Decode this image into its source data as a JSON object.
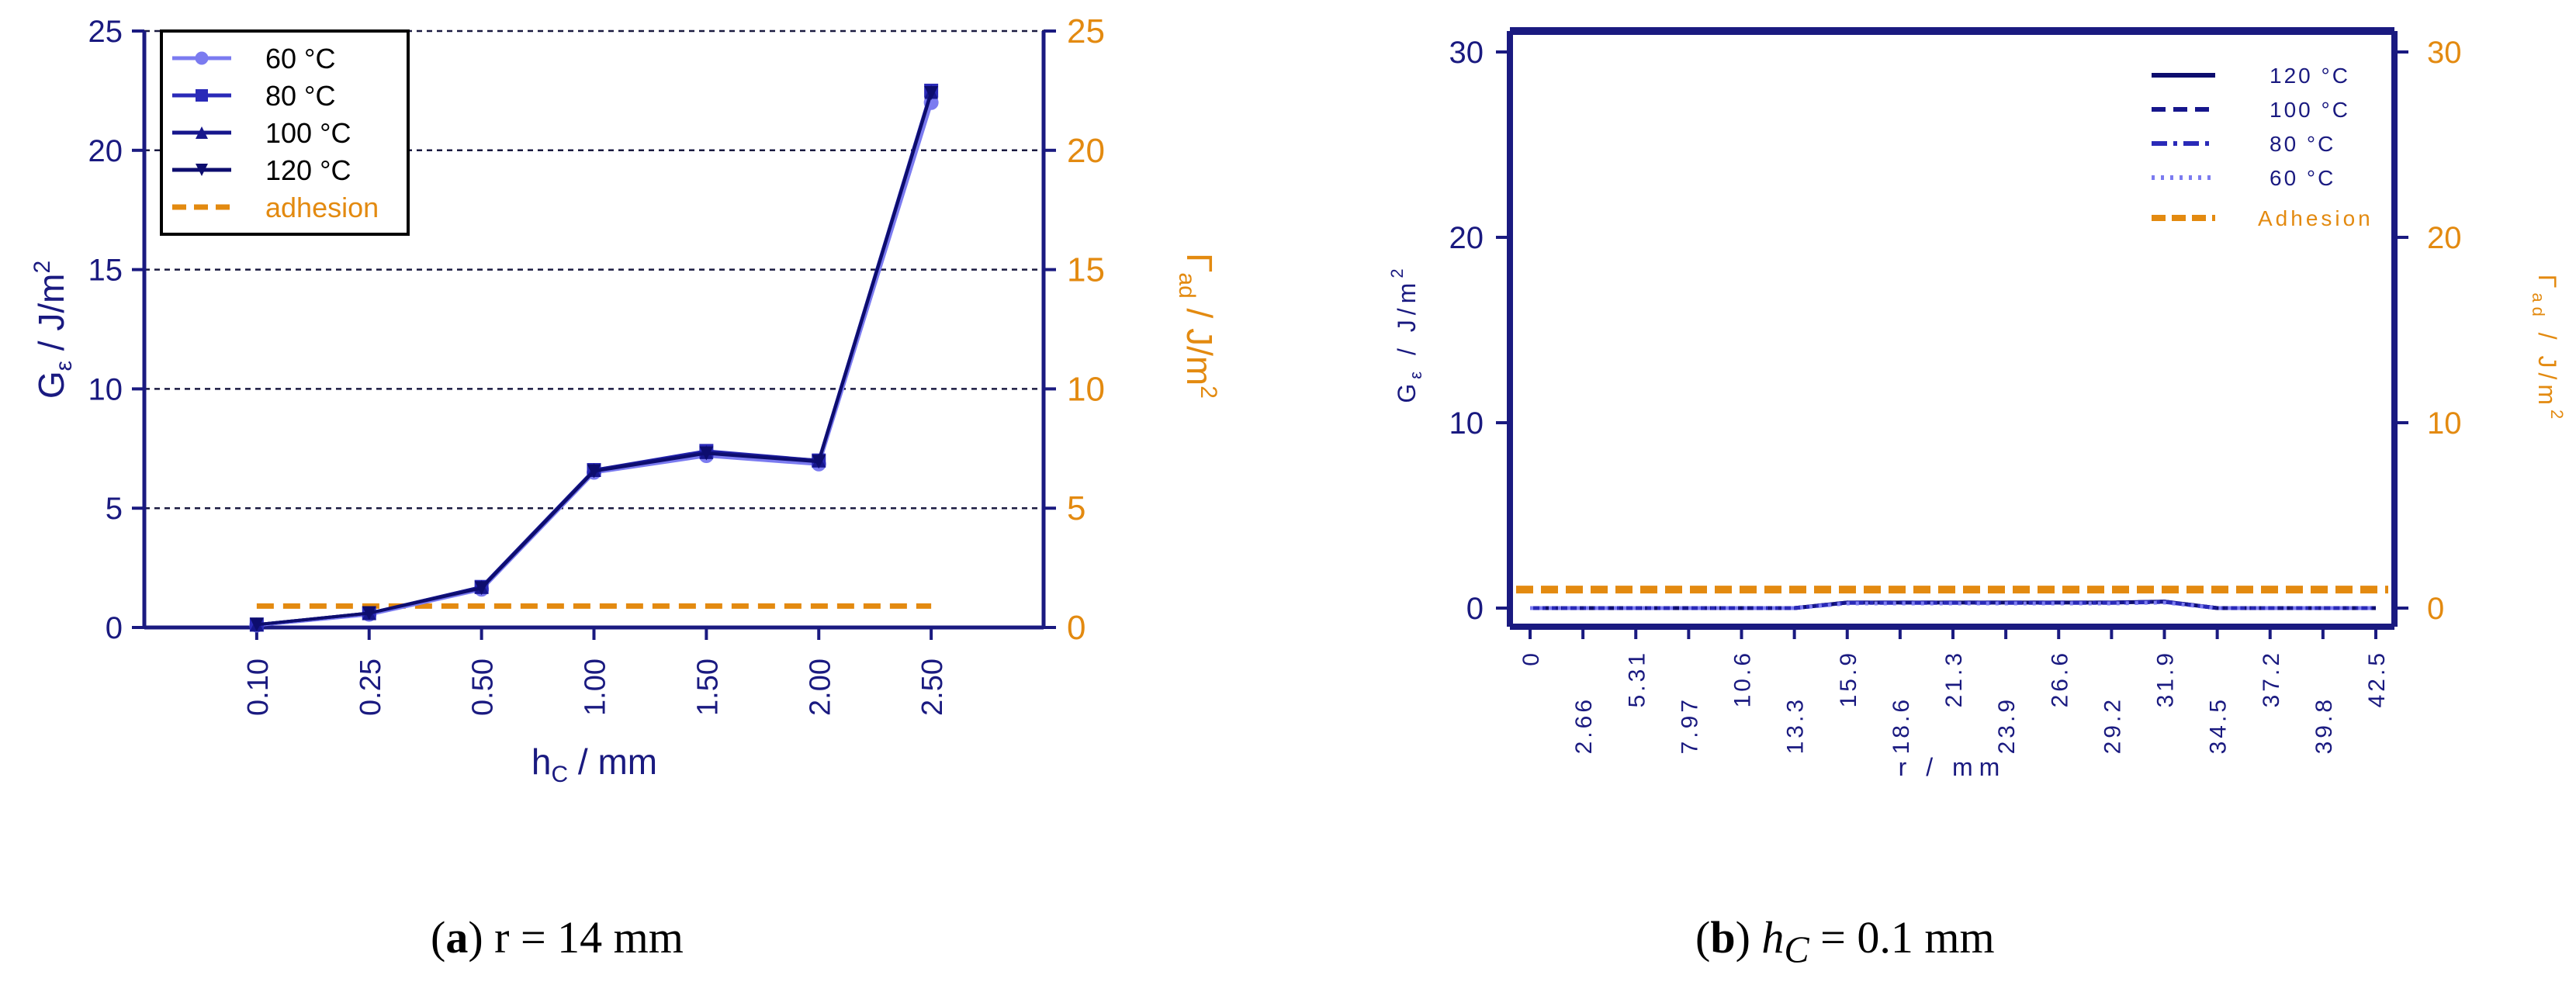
{
  "colors": {
    "axis_navy": "#1a1a80",
    "adhesion_orange": "#e38a10",
    "c60": "#7b7bf0",
    "c80": "#2a2ab8",
    "c100": "#16168c",
    "c120": "#0d0d6e",
    "grid": "#1a1a40"
  },
  "captions": {
    "a": {
      "label": "a",
      "text": "r = 14 mm"
    },
    "b": {
      "label": "b",
      "var": "h",
      "sub": "C",
      "text": " = 0.1 mm"
    }
  },
  "chart_data": [
    {
      "id": "a",
      "type": "line",
      "categories": [
        "0.10",
        "0.25",
        "0.50",
        "1.00",
        "1.50",
        "2.00",
        "2.50"
      ],
      "series": [
        {
          "name": "60 °C",
          "marker": "circle",
          "values": [
            0.1,
            0.55,
            1.6,
            6.5,
            7.2,
            6.85,
            22.0
          ]
        },
        {
          "name": "80 °C",
          "marker": "square",
          "values": [
            0.12,
            0.6,
            1.7,
            6.6,
            7.4,
            7.0,
            22.5
          ]
        },
        {
          "name": "100 °C",
          "marker": "triangle",
          "values": [
            0.12,
            0.6,
            1.7,
            6.6,
            7.35,
            7.0,
            22.45
          ]
        },
        {
          "name": "120 °C",
          "marker": "tri-down",
          "values": [
            0.12,
            0.6,
            1.65,
            6.55,
            7.3,
            6.95,
            22.4
          ]
        }
      ],
      "adhesion": {
        "name": "adhesion",
        "value": 0.9
      },
      "ylim": [
        0,
        25
      ],
      "yticks": [
        "0",
        "5",
        "10",
        "15",
        "20",
        "25"
      ],
      "y2ticks": [
        "0",
        "5",
        "10",
        "15",
        "20",
        "25"
      ],
      "xlabel_main": "h",
      "xlabel_sub": "C",
      "xlabel_rest": " / mm",
      "ylabel_main": "G",
      "ylabel_sub": "ε",
      "ylabel_rest": " / J/m",
      "ylabel_sup": "2",
      "y2label_main": "Γ",
      "y2label_sub": "ad",
      "y2label_rest": " / J/m",
      "y2label_sup": "2",
      "grid": true,
      "legend_position": "top-left"
    },
    {
      "id": "b",
      "type": "line",
      "x": [
        "0",
        "2.66",
        "5.31",
        "7.97",
        "10.6",
        "13.3",
        "15.9",
        "18.6",
        "21.3",
        "23.9",
        "26.6",
        "29.2",
        "31.9",
        "34.5",
        "37.2",
        "39.8",
        "42.5"
      ],
      "series": [
        {
          "name": "120 °C",
          "dash": "solid",
          "values": [
            0,
            0,
            0,
            0,
            0,
            0,
            0.3,
            0.3,
            0.3,
            0.3,
            0.3,
            0.3,
            0.35,
            0,
            0,
            0,
            0
          ]
        },
        {
          "name": "100 °C",
          "dash": "dash",
          "values": [
            0,
            0,
            0,
            0,
            0,
            0,
            0.3,
            0.3,
            0.3,
            0.3,
            0.3,
            0.3,
            0.35,
            0,
            0,
            0,
            0
          ]
        },
        {
          "name": "80 °C",
          "dash": "dash-dot",
          "values": [
            0,
            0,
            0,
            0,
            0,
            0,
            0.28,
            0.28,
            0.28,
            0.28,
            0.28,
            0.28,
            0.33,
            0,
            0,
            0,
            0
          ]
        },
        {
          "name": "60 °C",
          "dash": "dot",
          "values": [
            0,
            0,
            0,
            0,
            0,
            0,
            0.25,
            0.25,
            0.25,
            0.25,
            0.25,
            0.25,
            0.3,
            0,
            0,
            0,
            0
          ]
        }
      ],
      "adhesion": {
        "name": "Adhesion",
        "value": 1.0
      },
      "ylim": [
        0,
        30
      ],
      "yticks": [
        "0",
        "10",
        "20",
        "30"
      ],
      "y2ticks": [
        "0",
        "10",
        "20",
        "30"
      ],
      "xlabel_main": "r / mm",
      "ylabel_main": "G",
      "ylabel_sub": "ε",
      "ylabel_rest": " / J/m",
      "ylabel_sup": "2",
      "y2label_main": "Γ",
      "y2label_sub": "ad",
      "y2label_rest": " / J/m",
      "y2label_sup": "2",
      "grid": false,
      "legend_position": "top-right"
    }
  ]
}
